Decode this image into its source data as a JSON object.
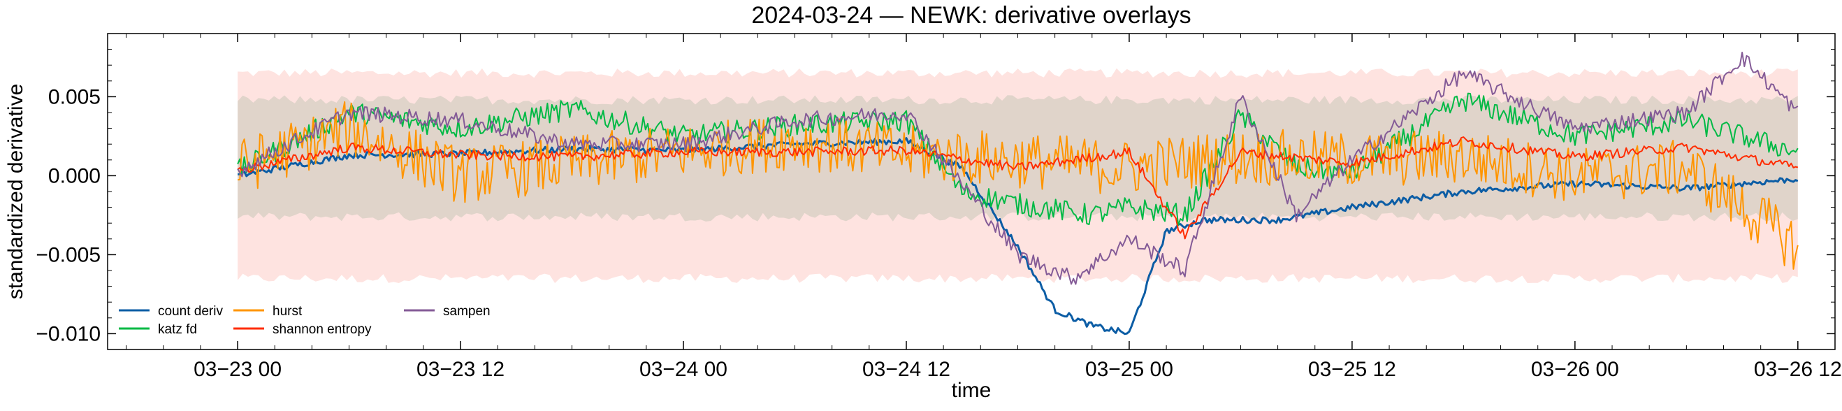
{
  "chart_data": {
    "type": "line",
    "title": "2024-03-24 — NEWK: derivative overlays",
    "xlabel": "time",
    "ylabel": "standardized derivative",
    "x_unit": "datetime",
    "x_range": [
      "2024-03-22T17:00",
      "2024-03-26T14:00"
    ],
    "ylim": [
      -0.011,
      0.009
    ],
    "x_ticks": [
      {
        "t": "2024-03-23T00:00",
        "label": "03−23 00"
      },
      {
        "t": "2024-03-23T12:00",
        "label": "03−23 12"
      },
      {
        "t": "2024-03-24T00:00",
        "label": "03−24 00"
      },
      {
        "t": "2024-03-24T12:00",
        "label": "03−24 12"
      },
      {
        "t": "2024-03-25T00:00",
        "label": "03−25 00"
      },
      {
        "t": "2024-03-25T12:00",
        "label": "03−25 12"
      },
      {
        "t": "2024-03-26T00:00",
        "label": "03−26 00"
      },
      {
        "t": "2024-03-26T12:00",
        "label": "03−26 12"
      }
    ],
    "y_ticks": [
      {
        "v": 0.005,
        "label": "0.005"
      },
      {
        "v": 0.0,
        "label": "0.000"
      },
      {
        "v": -0.005,
        "label": "−0.005"
      },
      {
        "v": -0.01,
        "label": "−0.010"
      }
    ],
    "grid": false,
    "legend_position": "lower-left",
    "bands": [
      {
        "color": "#fa8072",
        "opacity": 0.22,
        "upper": 0.0065,
        "lower": -0.0065
      },
      {
        "color": "#a9b7a0",
        "opacity": 0.35,
        "upper": 0.0048,
        "lower": -0.0026
      }
    ],
    "series": [
      {
        "name": "count deriv",
        "color": "#0c5da5",
        "t": [
          "2024-03-23T00:00",
          "2024-03-23T06:00",
          "2024-03-23T12:00",
          "2024-03-23T18:00",
          "2024-03-24T00:00",
          "2024-03-24T06:00",
          "2024-03-24T12:00",
          "2024-03-24T15:00",
          "2024-03-24T18:00",
          "2024-03-24T20:00",
          "2024-03-24T22:00",
          "2024-03-25T00:00",
          "2024-03-25T02:00",
          "2024-03-25T04:00",
          "2024-03-25T08:00",
          "2024-03-25T12:00",
          "2024-03-25T18:00",
          "2024-03-26T00:00",
          "2024-03-26T06:00",
          "2024-03-26T12:00"
        ],
        "values": [
          0.0,
          0.0013,
          0.0014,
          0.0017,
          0.0016,
          0.002,
          0.0022,
          0.0005,
          -0.0045,
          -0.0085,
          -0.0095,
          -0.01,
          -0.0035,
          -0.0028,
          -0.0028,
          -0.002,
          -0.001,
          -0.0005,
          -0.0008,
          -0.0002
        ]
      },
      {
        "name": "katz fd",
        "color": "#00b945",
        "t": [
          "2024-03-23T00:00",
          "2024-03-23T06:00",
          "2024-03-23T12:00",
          "2024-03-23T18:00",
          "2024-03-24T00:00",
          "2024-03-24T06:00",
          "2024-03-24T12:00",
          "2024-03-24T15:00",
          "2024-03-24T18:00",
          "2024-03-24T22:00",
          "2024-03-25T00:00",
          "2024-03-25T03:00",
          "2024-03-25T06:00",
          "2024-03-25T09:00",
          "2024-03-25T12:00",
          "2024-03-25T18:00",
          "2024-03-26T00:00",
          "2024-03-26T06:00",
          "2024-03-26T12:00"
        ],
        "values": [
          0.0003,
          0.004,
          0.003,
          0.0042,
          0.0025,
          0.0032,
          0.0035,
          -0.001,
          -0.0018,
          -0.0025,
          -0.002,
          -0.0025,
          0.0038,
          0.0005,
          0.0002,
          0.0048,
          0.0025,
          0.0035,
          0.0015
        ]
      },
      {
        "name": "hurst",
        "color": "#ff9500",
        "t": [
          "2024-03-23T00:00",
          "2024-03-23T06:00",
          "2024-03-23T12:00",
          "2024-03-23T18:00",
          "2024-03-24T00:00",
          "2024-03-24T06:00",
          "2024-03-24T12:00",
          "2024-03-24T18:00",
          "2024-03-25T00:00",
          "2024-03-25T06:00",
          "2024-03-25T12:00",
          "2024-03-25T18:00",
          "2024-03-26T00:00",
          "2024-03-26T06:00",
          "2024-03-26T12:00"
        ],
        "values": [
          0.0005,
          0.003,
          0.0,
          0.0008,
          0.0015,
          0.0022,
          0.0014,
          0.001,
          0.0005,
          0.0012,
          0.001,
          0.0012,
          0.0,
          0.0005,
          -0.0045
        ]
      },
      {
        "name": "shannon entropy",
        "color": "#ff2c00",
        "t": [
          "2024-03-23T00:00",
          "2024-03-23T06:00",
          "2024-03-23T12:00",
          "2024-03-23T18:00",
          "2024-03-24T00:00",
          "2024-03-24T06:00",
          "2024-03-24T12:00",
          "2024-03-24T18:00",
          "2024-03-25T00:00",
          "2024-03-25T03:00",
          "2024-03-25T06:00",
          "2024-03-25T12:00",
          "2024-03-25T18:00",
          "2024-03-26T00:00",
          "2024-03-26T06:00",
          "2024-03-26T12:00"
        ],
        "values": [
          0.0003,
          0.0018,
          0.0013,
          0.0012,
          0.0015,
          0.0015,
          0.0016,
          0.0005,
          0.0015,
          -0.0038,
          0.0015,
          0.0008,
          0.0022,
          0.0012,
          0.0018,
          0.0005
        ]
      },
      {
        "name": "sampen",
        "color": "#845b97",
        "t": [
          "2024-03-23T00:00",
          "2024-03-23T06:00",
          "2024-03-23T12:00",
          "2024-03-23T18:00",
          "2024-03-24T00:00",
          "2024-03-24T06:00",
          "2024-03-24T12:00",
          "2024-03-24T18:00",
          "2024-03-24T21:00",
          "2024-03-25T00:00",
          "2024-03-25T03:00",
          "2024-03-25T06:00",
          "2024-03-25T09:00",
          "2024-03-25T12:00",
          "2024-03-25T18:00",
          "2024-03-26T00:00",
          "2024-03-26T06:00",
          "2024-03-26T09:00",
          "2024-03-26T12:00"
        ],
        "values": [
          0.0003,
          0.004,
          0.0035,
          0.002,
          0.002,
          0.0035,
          0.004,
          -0.005,
          -0.0065,
          -0.004,
          -0.006,
          0.005,
          -0.0025,
          0.001,
          0.0065,
          0.003,
          0.004,
          0.0075,
          0.004
        ]
      }
    ]
  }
}
